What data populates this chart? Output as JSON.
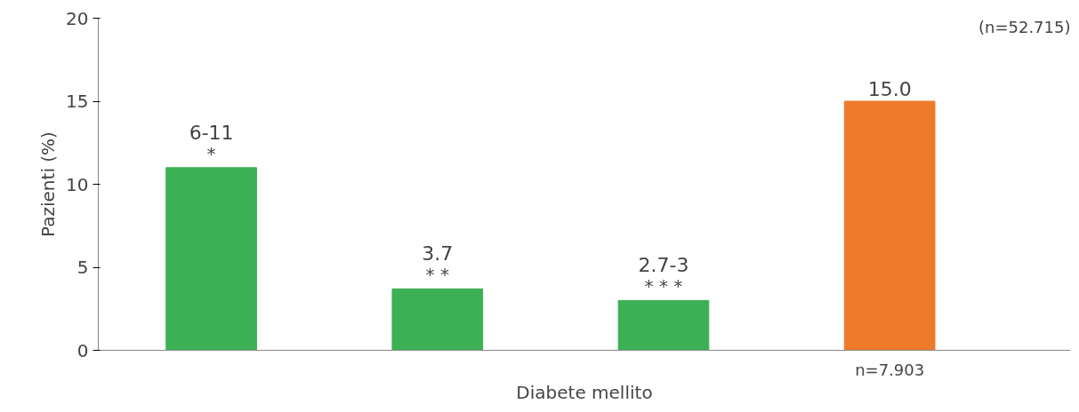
{
  "chart_data": {
    "type": "bar",
    "xlabel": "Diabete mellito",
    "ylabel": "Pazienti (%)",
    "categories": [
      null,
      null,
      null,
      null
    ],
    "values": [
      11,
      3.7,
      3,
      15.0
    ],
    "colors": [
      "#3cb054",
      "#3cb054",
      "#3cb054",
      "#ee7a2b"
    ],
    "value_labels": [
      "6-11",
      "3.7",
      "2.7-3",
      "15.0"
    ],
    "annotations": [
      "*",
      "* *",
      "* * *",
      "n=7.903",
      "(n=52.715)"
    ],
    "ylim": [
      0,
      20
    ],
    "yticks": [
      0,
      5,
      10,
      15,
      20
    ],
    "grid": false
  }
}
